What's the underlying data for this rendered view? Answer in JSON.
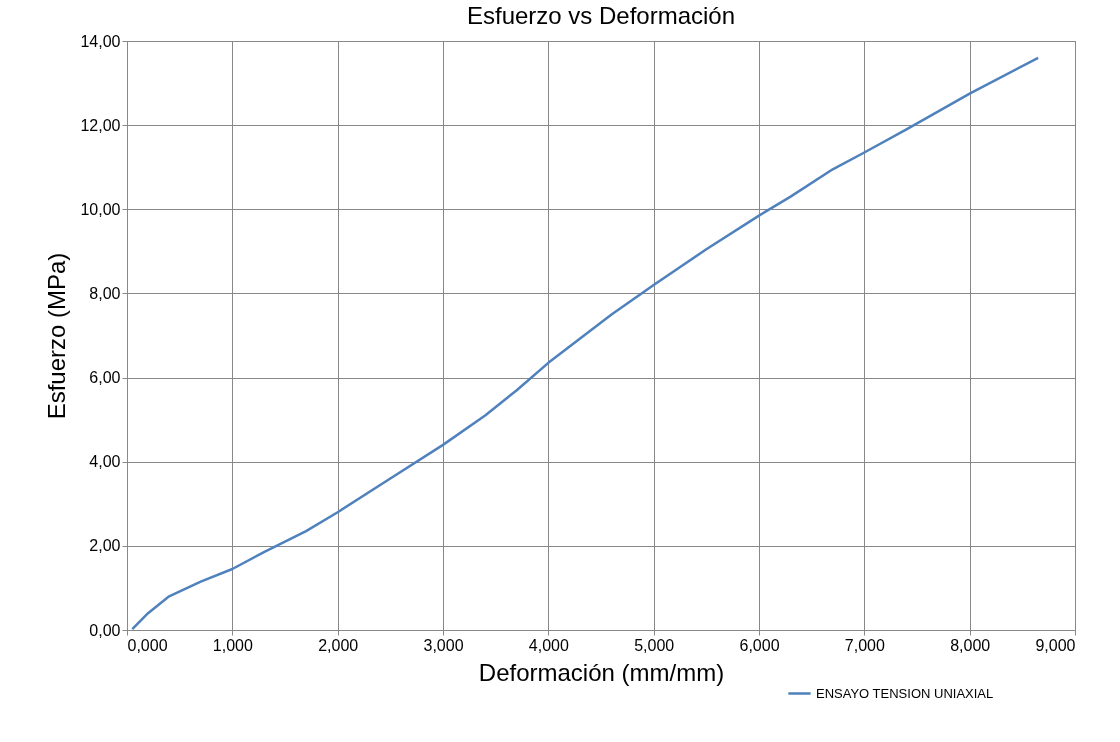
{
  "chart_data": {
    "type": "line",
    "title": "Esfuerzo vs Deformación",
    "xlabel": "Deformación (mm/mm)",
    "ylabel": "Esfuerzo (MPa)",
    "x": [
      0.05,
      0.2,
      0.4,
      0.7,
      1.0,
      1.3,
      1.7,
      2.0,
      2.5,
      3.0,
      3.4,
      3.7,
      4.0,
      4.6,
      5.0,
      5.5,
      6.0,
      6.3,
      6.7,
      7.0,
      7.4,
      8.0,
      8.65
    ],
    "series": [
      {
        "name": "ENSAYO TENSION UNIAXIAL",
        "color": "#4f81bd",
        "values": [
          0.02,
          0.4,
          0.8,
          1.15,
          1.45,
          1.85,
          2.35,
          2.8,
          3.6,
          4.4,
          5.1,
          5.7,
          6.35,
          7.5,
          8.2,
          9.05,
          9.85,
          10.3,
          10.95,
          11.35,
          11.9,
          12.75,
          13.6
        ]
      }
    ],
    "xlim": [
      0,
      9
    ],
    "ylim": [
      0,
      14
    ],
    "xticks": [
      {
        "value": 0,
        "label": "0,000"
      },
      {
        "value": 1,
        "label": "1,000"
      },
      {
        "value": 2,
        "label": "2,000"
      },
      {
        "value": 3,
        "label": "3,000"
      },
      {
        "value": 4,
        "label": "4,000"
      },
      {
        "value": 5,
        "label": "5,000"
      },
      {
        "value": 6,
        "label": "6,000"
      },
      {
        "value": 7,
        "label": "7,000"
      },
      {
        "value": 8,
        "label": "8,000"
      },
      {
        "value": 9,
        "label": "9,000"
      }
    ],
    "yticks": [
      {
        "value": 0,
        "label": "0,00"
      },
      {
        "value": 2,
        "label": "2,00"
      },
      {
        "value": 4,
        "label": "4,00"
      },
      {
        "value": 6,
        "label": "6,00"
      },
      {
        "value": 8,
        "label": "8,00"
      },
      {
        "value": 10,
        "label": "10,00"
      },
      {
        "value": 12,
        "label": "12,00"
      },
      {
        "value": 14,
        "label": "14,00"
      }
    ],
    "grid": true,
    "legend": "bottom right",
    "marker": "none",
    "line_style": "solid"
  }
}
